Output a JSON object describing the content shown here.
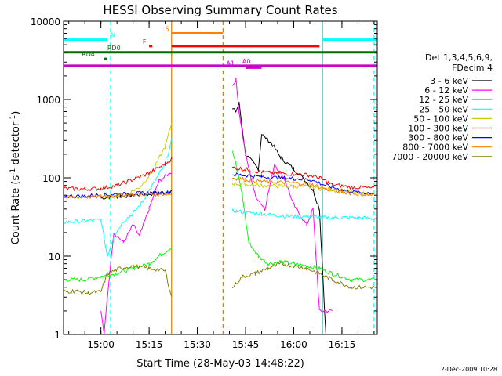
{
  "chart_data": {
    "type": "line",
    "title": "HESSI Observing Summary Count Rates",
    "xlabel": "Start Time (28-May-03 14:48:22)",
    "ylabel": "Count Rate (s⁻¹ detector⁻¹)",
    "ylabel_parts": [
      "Count Rate (s",
      "-1",
      " detector",
      "-1",
      ")"
    ],
    "y_scale": "log",
    "ylim": [
      1,
      10000
    ],
    "xlim": [
      "14:48:22",
      "16:26:00"
    ],
    "x_ticks": [
      "15:00",
      "15:15",
      "15:30",
      "15:45",
      "16:00",
      "16:15"
    ],
    "y_ticks": [
      "1",
      "10",
      "100",
      "1000",
      "10000"
    ],
    "legend_header": [
      "Det 1,3,4,5,6,9,",
      "FDecim 4"
    ],
    "legend_position": "right",
    "footer_date": "2-Dec-2009 10:28",
    "series": [
      {
        "name": "3 - 6 keV",
        "color": "#000000",
        "points": [
          [
            "14:48:22",
            53
          ],
          [
            "15:00",
            55
          ],
          [
            "15:03",
            57
          ],
          [
            "15:06",
            58
          ],
          [
            "15:10",
            60
          ],
          [
            "15:15",
            62
          ],
          [
            "15:18",
            64
          ],
          [
            "15:22",
            68
          ],
          [
            "15:41",
            750
          ],
          [
            "15:42",
            700
          ],
          [
            "15:43",
            900
          ],
          [
            "15:45",
            200
          ],
          [
            "15:49",
            130
          ],
          [
            "15:50",
            360
          ],
          [
            "15:53",
            280
          ],
          [
            "15:56",
            180
          ],
          [
            "16:00",
            130
          ],
          [
            "16:03",
            100
          ],
          [
            "16:06",
            70
          ],
          [
            "16:08",
            40
          ],
          [
            "16:10",
            1
          ]
        ]
      },
      {
        "name": "6 - 12 keV",
        "color": "#ff00ff",
        "points": [
          [
            "14:48:22",
            2
          ],
          [
            "15:00",
            2
          ],
          [
            "15:01",
            1
          ],
          [
            "15:02",
            3
          ],
          [
            "15:04",
            20
          ],
          [
            "15:07",
            15
          ],
          [
            "15:10",
            25
          ],
          [
            "15:12",
            18
          ],
          [
            "15:15",
            40
          ],
          [
            "15:18",
            90
          ],
          [
            "15:22",
            120
          ],
          [
            "15:41",
            1500
          ],
          [
            "15:42",
            1800
          ],
          [
            "15:43",
            700
          ],
          [
            "15:45",
            200
          ],
          [
            "15:48",
            60
          ],
          [
            "15:51",
            40
          ],
          [
            "15:54",
            150
          ],
          [
            "15:57",
            100
          ],
          [
            "16:00",
            45
          ],
          [
            "16:04",
            25
          ],
          [
            "16:06",
            40
          ],
          [
            "16:08",
            2
          ],
          [
            "16:12",
            2
          ]
        ]
      },
      {
        "name": "12 - 25 keV",
        "color": "#00ff00",
        "points": [
          [
            "14:48:22",
            5
          ],
          [
            "14:55",
            5
          ],
          [
            "15:00",
            5.5
          ],
          [
            "15:05",
            6
          ],
          [
            "15:10",
            7
          ],
          [
            "15:15",
            8
          ],
          [
            "15:18",
            10
          ],
          [
            "15:22",
            13
          ],
          [
            "15:41",
            220
          ],
          [
            "15:42",
            150
          ],
          [
            "15:44",
            60
          ],
          [
            "15:46",
            15
          ],
          [
            "15:49",
            10
          ],
          [
            "15:52",
            8
          ],
          [
            "15:56",
            8.5
          ],
          [
            "16:00",
            8
          ],
          [
            "16:04",
            7.5
          ],
          [
            "16:08",
            7
          ],
          [
            "16:12",
            6
          ],
          [
            "16:18",
            5
          ],
          [
            "16:25",
            5
          ]
        ]
      },
      {
        "name": "25 - 50 keV",
        "color": "#00ffff",
        "points": [
          [
            "14:48:22",
            27
          ],
          [
            "14:55",
            28
          ],
          [
            "15:00",
            29
          ],
          [
            "15:02",
            10
          ],
          [
            "15:04",
            18
          ],
          [
            "15:07",
            28
          ],
          [
            "15:10",
            35
          ],
          [
            "15:13",
            50
          ],
          [
            "15:16",
            80
          ],
          [
            "15:20",
            150
          ],
          [
            "15:22",
            300
          ],
          [
            "15:41",
            38
          ],
          [
            "15:45",
            36
          ],
          [
            "15:50",
            35
          ],
          [
            "15:55",
            33
          ],
          [
            "16:00",
            32
          ],
          [
            "16:05",
            32
          ],
          [
            "16:10",
            31
          ],
          [
            "16:15",
            31
          ],
          [
            "16:20",
            31
          ],
          [
            "16:25",
            30
          ]
        ]
      },
      {
        "name": "50 - 100 keV",
        "color": "#cccc00",
        "points": [
          [
            "14:48:22",
            56
          ],
          [
            "15:00",
            57
          ],
          [
            "15:04",
            58
          ],
          [
            "15:08",
            62
          ],
          [
            "15:12",
            75
          ],
          [
            "15:16",
            120
          ],
          [
            "15:20",
            250
          ],
          [
            "15:22",
            500
          ],
          [
            "15:41",
            85
          ],
          [
            "15:45",
            82
          ],
          [
            "15:50",
            80
          ],
          [
            "15:55",
            78
          ],
          [
            "16:00",
            78
          ],
          [
            "16:05",
            76
          ],
          [
            "16:10",
            72
          ],
          [
            "16:15",
            68
          ],
          [
            "16:20",
            64
          ],
          [
            "16:25",
            62
          ]
        ]
      },
      {
        "name": "100 - 300 keV",
        "color": "#ff0000",
        "points": [
          [
            "14:48:22",
            73
          ],
          [
            "14:55",
            72
          ],
          [
            "15:00",
            73
          ],
          [
            "15:05",
            80
          ],
          [
            "15:10",
            95
          ],
          [
            "15:15",
            115
          ],
          [
            "15:20",
            150
          ],
          [
            "15:22",
            175
          ],
          [
            "15:41",
            135
          ],
          [
            "15:45",
            128
          ],
          [
            "15:50",
            118
          ],
          [
            "15:55",
            114
          ],
          [
            "16:00",
            112
          ],
          [
            "16:05",
            108
          ],
          [
            "16:08",
            100
          ],
          [
            "16:12",
            82
          ],
          [
            "16:18",
            76
          ],
          [
            "16:25",
            74
          ]
        ]
      },
      {
        "name": "300 - 800 keV",
        "color": "#0000ff",
        "points": [
          [
            "14:48:22",
            58
          ],
          [
            "14:55",
            59
          ],
          [
            "15:00",
            60
          ],
          [
            "15:05",
            62
          ],
          [
            "15:10",
            63
          ],
          [
            "15:15",
            64
          ],
          [
            "15:22",
            65
          ],
          [
            "15:41",
            110
          ],
          [
            "15:45",
            108
          ],
          [
            "15:50",
            103
          ],
          [
            "15:55",
            100
          ],
          [
            "16:00",
            98
          ],
          [
            "16:05",
            95
          ],
          [
            "16:10",
            80
          ],
          [
            "16:15",
            70
          ],
          [
            "16:20",
            65
          ],
          [
            "16:25",
            64
          ]
        ]
      },
      {
        "name": "800 - 7000 keV",
        "color": "#ff8000",
        "points": [
          [
            "14:48:22",
            56
          ],
          [
            "14:55",
            57
          ],
          [
            "15:00",
            58
          ],
          [
            "15:05",
            60
          ],
          [
            "15:10",
            61
          ],
          [
            "15:15",
            62
          ],
          [
            "15:22",
            62
          ],
          [
            "15:41",
            100
          ],
          [
            "15:45",
            95
          ],
          [
            "15:50",
            90
          ],
          [
            "15:55",
            88
          ],
          [
            "16:00",
            86
          ],
          [
            "16:05",
            84
          ],
          [
            "16:10",
            72
          ],
          [
            "16:15",
            66
          ],
          [
            "16:20",
            62
          ],
          [
            "16:25",
            60
          ]
        ]
      },
      {
        "name": "7000 - 20000 keV",
        "color": "#808000",
        "points": [
          [
            "14:48:22",
            3.5
          ],
          [
            "14:52",
            3.6
          ],
          [
            "14:56",
            3.4
          ],
          [
            "15:00",
            3.5
          ],
          [
            "15:02",
            6
          ],
          [
            "15:06",
            7
          ],
          [
            "15:10",
            7.5
          ],
          [
            "15:15",
            7
          ],
          [
            "15:20",
            6.5
          ],
          [
            "15:22",
            3
          ],
          [
            "15:41",
            4
          ],
          [
            "15:44",
            5.5
          ],
          [
            "15:48",
            6
          ],
          [
            "15:52",
            7
          ],
          [
            "15:56",
            8
          ],
          [
            "16:00",
            7.5
          ],
          [
            "16:04",
            7
          ],
          [
            "16:08",
            6
          ],
          [
            "16:12",
            5
          ],
          [
            "16:18",
            4
          ],
          [
            "16:25",
            4
          ]
        ]
      }
    ],
    "bars": [
      {
        "label": "N",
        "color": "#00ffff",
        "y": 5800,
        "segments": [
          [
            "14:48:22",
            "15:02"
          ],
          [
            "16:09",
            "16:26"
          ]
        ],
        "label_at": "15:03"
      },
      {
        "label": "S",
        "color": "#ff8000",
        "y": 7000,
        "segments": [
          [
            "15:22",
            "15:38"
          ]
        ],
        "label_at": "15:20"
      },
      {
        "label": "F",
        "color": "#ff0000",
        "y": 4800,
        "segments": [
          [
            "15:15",
            "15:16"
          ],
          [
            "15:22",
            "16:08"
          ]
        ],
        "label_at": "15:13"
      },
      {
        "label": "RD0",
        "color": "#007000",
        "y": 4000,
        "segments": [
          [
            "14:48:22",
            "16:26"
          ]
        ],
        "label_at": "15:02"
      },
      {
        "label": "RD4",
        "color": "#007000",
        "y": 3300,
        "segments": [
          [
            "15:01",
            "15:02"
          ]
        ],
        "label_at": "14:54"
      },
      {
        "label": "A0",
        "color": "#cc00cc",
        "y": 2700,
        "segments": [
          [
            "14:48:22",
            "16:26"
          ]
        ],
        "label_at": "15:44"
      },
      {
        "label": "A1",
        "color": "#cc00cc",
        "y": 2550,
        "segments": [
          [
            "15:45",
            "15:50"
          ]
        ],
        "label_at": "15:39"
      }
    ],
    "vlines": [
      {
        "time": "15:22",
        "color": "#d08000",
        "dash": false
      },
      {
        "time": "15:38",
        "color": "#d08000",
        "dash": true
      },
      {
        "time": "14:48:22",
        "color": "#00ffff",
        "dash": false
      },
      {
        "time": "15:03",
        "color": "#00ffff",
        "dash": true
      },
      {
        "time": "16:09",
        "color": "#00ffff",
        "dash": false
      },
      {
        "time": "16:25",
        "color": "#00ffff",
        "dash": true
      }
    ]
  }
}
